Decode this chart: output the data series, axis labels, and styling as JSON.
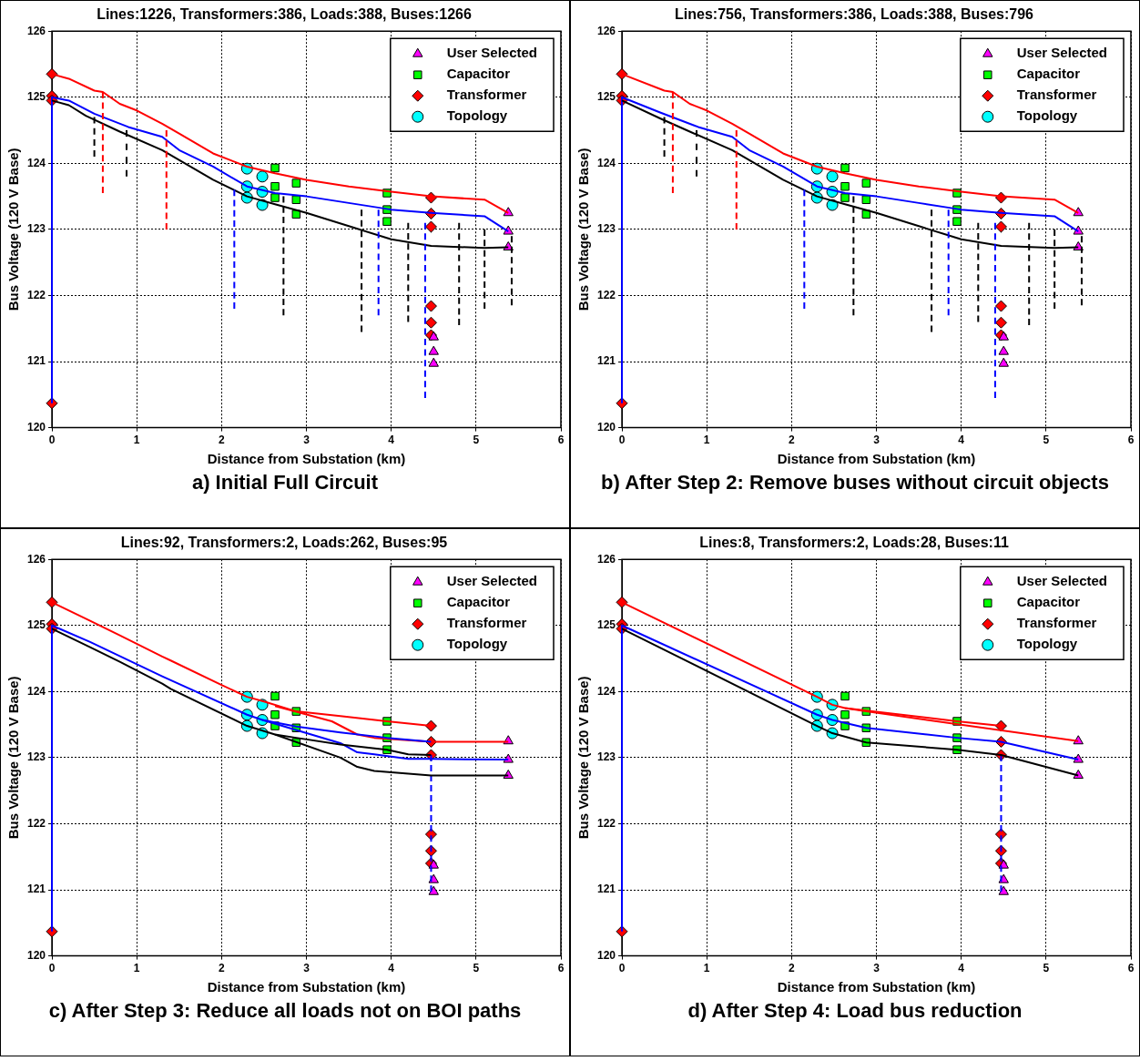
{
  "chart_data": [
    {
      "type": "line",
      "title": "Lines:1226, Transformers:386, Loads:388, Buses:1266",
      "xlabel": "Distance from Substation (km)",
      "ylabel": "Bus Voltage (120 V Base)",
      "annotations": [
        "a)  Initial Full Circuit"
      ],
      "xlim": [
        0,
        6
      ],
      "ylim": [
        120,
        126
      ],
      "xticks": [
        0,
        1,
        2,
        3,
        4,
        5,
        6
      ],
      "yticks": [
        120,
        121,
        122,
        123,
        124,
        125,
        126
      ],
      "grid": true,
      "legend": "top right",
      "series": [
        {
          "type": "line",
          "color": "#000000",
          "line_style": "dashed",
          "marker": "none",
          "x": [
            0.5,
            0.5
          ],
          "values": [
            124.7,
            124.1
          ]
        },
        {
          "type": "line",
          "color": "#ff0000",
          "line_style": "dashed",
          "marker": "none",
          "x": [
            0.6,
            0.6
          ],
          "values": [
            125.08,
            123.55
          ]
        },
        {
          "type": "line",
          "color": "#ff0000",
          "line_style": "dashed",
          "marker": "none",
          "x": [
            1.35,
            1.35
          ],
          "values": [
            124.5,
            123.0
          ]
        },
        {
          "type": "line",
          "color": "#000000",
          "line_style": "dashed",
          "marker": "none",
          "x": [
            0.88,
            0.88
          ],
          "values": [
            124.5,
            123.8
          ]
        },
        {
          "type": "line",
          "color": "#0000ff",
          "line_style": "dashed",
          "marker": "none",
          "x": [
            2.15,
            2.15
          ],
          "values": [
            123.6,
            121.8
          ]
        },
        {
          "type": "line",
          "color": "#000000",
          "line_style": "dashed",
          "marker": "none",
          "x": [
            2.73,
            2.73
          ],
          "values": [
            123.5,
            121.7
          ]
        },
        {
          "type": "line",
          "color": "#000000",
          "line_style": "dashed",
          "marker": "none",
          "x": [
            3.65,
            3.65
          ],
          "values": [
            123.3,
            121.45
          ]
        },
        {
          "type": "line",
          "color": "#0000ff",
          "line_style": "dashed",
          "marker": "none",
          "x": [
            3.85,
            3.85
          ],
          "values": [
            123.3,
            121.7
          ]
        },
        {
          "type": "line",
          "color": "#000000",
          "line_style": "dashed",
          "marker": "none",
          "x": [
            4.2,
            4.2
          ],
          "values": [
            123.1,
            121.6
          ]
        },
        {
          "type": "line",
          "color": "#0000ff",
          "line_style": "dashed",
          "marker": "none",
          "x": [
            4.4,
            4.4
          ],
          "values": [
            123.1,
            120.45
          ]
        },
        {
          "type": "line",
          "color": "#000000",
          "line_style": "dashed",
          "marker": "none",
          "x": [
            4.8,
            4.8
          ],
          "values": [
            123.1,
            121.55
          ]
        },
        {
          "type": "line",
          "color": "#000000",
          "line_style": "dashed",
          "marker": "none",
          "x": [
            5.1,
            5.1
          ],
          "values": [
            123.0,
            121.8
          ]
        },
        {
          "type": "line",
          "color": "#000000",
          "line_style": "dashed",
          "marker": "none",
          "x": [
            5.42,
            5.42
          ],
          "values": [
            122.9,
            121.85
          ]
        },
        {
          "type": "line",
          "color": "#000000",
          "line_style": "solid",
          "marker": "none",
          "x": [
            0,
            0.2,
            0.4,
            0.8,
            1.3,
            1.9,
            2.3,
            2.63,
            3.0,
            3.5,
            4.0,
            4.47,
            5.1,
            5.38
          ],
          "values": [
            124.95,
            124.88,
            124.72,
            124.48,
            124.2,
            123.75,
            123.5,
            123.38,
            123.25,
            123.05,
            122.85,
            122.75,
            122.72,
            122.73
          ]
        },
        {
          "type": "line",
          "color": "#0000ff",
          "line_style": "solid",
          "marker": "none",
          "x": [
            0,
            0,
            0.2,
            0.5,
            0.9,
            1.3,
            1.5,
            1.9,
            2.3,
            2.63,
            3.0,
            3.5,
            4.0,
            4.47,
            5.1,
            5.38
          ],
          "values": [
            120.37,
            125.0,
            124.95,
            124.75,
            124.55,
            124.4,
            124.2,
            123.95,
            123.65,
            123.55,
            123.5,
            123.4,
            123.3,
            123.25,
            123.2,
            122.97
          ]
        },
        {
          "type": "line",
          "color": "#ff0000",
          "line_style": "solid",
          "marker": "none",
          "x": [
            0,
            0.2,
            0.5,
            0.6,
            0.8,
            1.0,
            1.3,
            1.5,
            1.9,
            2.3,
            2.63,
            3.0,
            3.5,
            4.0,
            4.47,
            5.1,
            5.38
          ],
          "values": [
            125.35,
            125.28,
            125.1,
            125.08,
            124.9,
            124.8,
            124.6,
            124.45,
            124.15,
            123.95,
            123.85,
            123.75,
            123.65,
            123.57,
            123.5,
            123.45,
            123.25
          ]
        },
        {
          "name": "User Selected",
          "type": "scatter",
          "color": "#ff00ff",
          "marker": "triangle",
          "x": [
            5.38,
            5.38,
            5.38,
            4.5,
            4.5,
            4.5
          ],
          "values": [
            123.25,
            122.97,
            122.73,
            121.37,
            121.15,
            120.97
          ]
        },
        {
          "name": "Capacitor",
          "type": "scatter",
          "color": "#00ff00",
          "marker": "square",
          "x": [
            2.63,
            2.63,
            2.63,
            2.88,
            2.88,
            2.88,
            3.95,
            3.95,
            3.95
          ],
          "values": [
            123.93,
            123.65,
            123.48,
            123.7,
            123.45,
            123.23,
            123.55,
            123.3,
            123.12
          ]
        },
        {
          "name": "Transformer",
          "type": "scatter",
          "color": "#ff0000",
          "marker": "diamond",
          "x": [
            0,
            0,
            0,
            0,
            4.47,
            4.47,
            4.47,
            4.47,
            4.47,
            4.47
          ],
          "values": [
            125.35,
            125.02,
            124.95,
            120.37,
            123.48,
            123.24,
            123.04,
            121.84,
            121.59,
            121.4
          ]
        },
        {
          "name": "Topology",
          "type": "scatter",
          "color": "#00ffff",
          "marker": "circle",
          "x": [
            2.3,
            2.3,
            2.3,
            2.48,
            2.48,
            2.48
          ],
          "values": [
            123.92,
            123.65,
            123.48,
            123.8,
            123.57,
            123.37
          ]
        }
      ]
    },
    {
      "type": "line",
      "title": "Lines:756, Transformers:386, Loads:388, Buses:796",
      "xlabel": "Distance from Substation (km)",
      "ylabel": "Bus Voltage (120 V Base)",
      "annotations": [
        "b)  After Step 2: Remove buses without circuit objects"
      ],
      "xlim": [
        0,
        6
      ],
      "ylim": [
        120,
        126
      ],
      "xticks": [
        0,
        1,
        2,
        3,
        4,
        5,
        6
      ],
      "yticks": [
        120,
        121,
        122,
        123,
        124,
        125,
        126
      ],
      "grid": true,
      "legend": "top right",
      "series": [
        {
          "type": "line",
          "color": "#000000",
          "line_style": "dashed",
          "marker": "none",
          "x": [
            0.5,
            0.5
          ],
          "values": [
            124.7,
            124.1
          ]
        },
        {
          "type": "line",
          "color": "#ff0000",
          "line_style": "dashed",
          "marker": "none",
          "x": [
            0.6,
            0.6
          ],
          "values": [
            125.08,
            123.55
          ]
        },
        {
          "type": "line",
          "color": "#ff0000",
          "line_style": "dashed",
          "marker": "none",
          "x": [
            1.35,
            1.35
          ],
          "values": [
            124.5,
            123.0
          ]
        },
        {
          "type": "line",
          "color": "#000000",
          "line_style": "dashed",
          "marker": "none",
          "x": [
            0.88,
            0.88
          ],
          "values": [
            124.5,
            123.8
          ]
        },
        {
          "type": "line",
          "color": "#0000ff",
          "line_style": "dashed",
          "marker": "none",
          "x": [
            2.15,
            2.15
          ],
          "values": [
            123.6,
            121.8
          ]
        },
        {
          "type": "line",
          "color": "#000000",
          "line_style": "dashed",
          "marker": "none",
          "x": [
            2.73,
            2.73
          ],
          "values": [
            123.5,
            121.7
          ]
        },
        {
          "type": "line",
          "color": "#000000",
          "line_style": "dashed",
          "marker": "none",
          "x": [
            3.65,
            3.65
          ],
          "values": [
            123.3,
            121.45
          ]
        },
        {
          "type": "line",
          "color": "#0000ff",
          "line_style": "dashed",
          "marker": "none",
          "x": [
            3.85,
            3.85
          ],
          "values": [
            123.3,
            121.7
          ]
        },
        {
          "type": "line",
          "color": "#000000",
          "line_style": "dashed",
          "marker": "none",
          "x": [
            4.2,
            4.2
          ],
          "values": [
            123.1,
            121.6
          ]
        },
        {
          "type": "line",
          "color": "#0000ff",
          "line_style": "dashed",
          "marker": "none",
          "x": [
            4.4,
            4.4
          ],
          "values": [
            123.1,
            120.45
          ]
        },
        {
          "type": "line",
          "color": "#000000",
          "line_style": "dashed",
          "marker": "none",
          "x": [
            4.8,
            4.8
          ],
          "values": [
            123.1,
            121.55
          ]
        },
        {
          "type": "line",
          "color": "#000000",
          "line_style": "dashed",
          "marker": "none",
          "x": [
            5.1,
            5.1
          ],
          "values": [
            123.0,
            121.8
          ]
        },
        {
          "type": "line",
          "color": "#000000",
          "line_style": "dashed",
          "marker": "none",
          "x": [
            5.42,
            5.42
          ],
          "values": [
            122.9,
            121.85
          ]
        },
        {
          "type": "line",
          "color": "#000000",
          "line_style": "solid",
          "marker": "none",
          "x": [
            0,
            0.45,
            0.8,
            1.3,
            1.9,
            2.3,
            2.63,
            3.0,
            3.5,
            4.0,
            4.47,
            5.1,
            5.38
          ],
          "values": [
            124.95,
            124.68,
            124.48,
            124.2,
            123.75,
            123.5,
            123.38,
            123.25,
            123.05,
            122.85,
            122.75,
            122.72,
            122.73
          ]
        },
        {
          "type": "line",
          "color": "#0000ff",
          "line_style": "solid",
          "marker": "none",
          "x": [
            0,
            0,
            0.45,
            0.9,
            1.3,
            1.5,
            1.9,
            2.3,
            2.63,
            3.0,
            3.5,
            4.0,
            4.47,
            5.1,
            5.38
          ],
          "values": [
            120.37,
            125.0,
            124.77,
            124.55,
            124.4,
            124.2,
            123.95,
            123.65,
            123.55,
            123.5,
            123.4,
            123.3,
            123.25,
            123.2,
            122.97
          ]
        },
        {
          "type": "line",
          "color": "#ff0000",
          "line_style": "solid",
          "marker": "none",
          "x": [
            0,
            0.5,
            0.6,
            0.8,
            1.0,
            1.3,
            1.5,
            1.9,
            2.3,
            2.63,
            3.0,
            3.5,
            4.0,
            4.47,
            5.1,
            5.38
          ],
          "values": [
            125.35,
            125.1,
            125.08,
            124.9,
            124.8,
            124.6,
            124.45,
            124.15,
            123.95,
            123.85,
            123.75,
            123.65,
            123.57,
            123.5,
            123.45,
            123.25
          ]
        },
        {
          "name": "User Selected",
          "type": "scatter",
          "color": "#ff00ff",
          "marker": "triangle",
          "x": [
            5.38,
            5.38,
            5.38,
            4.5,
            4.5,
            4.5
          ],
          "values": [
            123.25,
            122.97,
            122.73,
            121.37,
            121.15,
            120.97
          ]
        },
        {
          "name": "Capacitor",
          "type": "scatter",
          "color": "#00ff00",
          "marker": "square",
          "x": [
            2.63,
            2.63,
            2.63,
            2.88,
            2.88,
            2.88,
            3.95,
            3.95,
            3.95
          ],
          "values": [
            123.93,
            123.65,
            123.48,
            123.7,
            123.45,
            123.23,
            123.55,
            123.3,
            123.12
          ]
        },
        {
          "name": "Transformer",
          "type": "scatter",
          "color": "#ff0000",
          "marker": "diamond",
          "x": [
            0,
            0,
            0,
            0,
            4.47,
            4.47,
            4.47,
            4.47,
            4.47,
            4.47
          ],
          "values": [
            125.35,
            125.02,
            124.95,
            120.37,
            123.48,
            123.24,
            123.04,
            121.84,
            121.59,
            121.4
          ]
        },
        {
          "name": "Topology",
          "type": "scatter",
          "color": "#00ffff",
          "marker": "circle",
          "x": [
            2.3,
            2.3,
            2.3,
            2.48,
            2.48,
            2.48
          ],
          "values": [
            123.92,
            123.65,
            123.48,
            123.8,
            123.57,
            123.37
          ]
        }
      ]
    },
    {
      "type": "line",
      "title": "Lines:92, Transformers:2, Loads:262, Buses:95",
      "xlabel": "Distance from Substation (km)",
      "ylabel": "Bus Voltage (120 V Base)",
      "annotations": [
        "c)  After Step 3: Reduce all loads not on BOI paths"
      ],
      "xlim": [
        0,
        6
      ],
      "ylim": [
        120,
        126
      ],
      "xticks": [
        0,
        1,
        2,
        3,
        4,
        5,
        6
      ],
      "yticks": [
        120,
        121,
        122,
        123,
        124,
        125,
        126
      ],
      "grid": true,
      "legend": "top right",
      "series": [
        {
          "type": "line",
          "color": "#000000",
          "line_style": "solid",
          "marker": "none",
          "x": [
            0,
            0.45,
            0.8,
            1.3,
            1.4,
            2.3,
            2.63,
            2.88,
            3.4,
            3.95,
            4.2,
            4.47
          ],
          "values": [
            124.95,
            124.67,
            124.45,
            124.12,
            124.04,
            123.48,
            123.35,
            123.3,
            123.2,
            123.12,
            123.05,
            123.04
          ]
        },
        {
          "type": "line",
          "color": "#000000",
          "line_style": "solid",
          "marker": "none",
          "x": [
            2.63,
            3.4,
            3.6,
            3.8,
            4.47,
            5.38
          ],
          "values": [
            123.35,
            123.0,
            122.86,
            122.8,
            122.73,
            122.73
          ]
        },
        {
          "type": "line",
          "color": "#0000ff",
          "line_style": "solid",
          "marker": "none",
          "x": [
            0,
            0,
            0.45,
            1.3,
            2.3,
            2.48,
            2.88,
            3.4,
            3.95,
            4.47
          ],
          "values": [
            120.37,
            125.0,
            124.75,
            124.23,
            123.65,
            123.57,
            123.47,
            123.38,
            123.3,
            123.24
          ]
        },
        {
          "type": "line",
          "color": "#0000ff",
          "line_style": "solid",
          "marker": "none",
          "x": [
            2.48,
            3.4,
            3.6,
            3.8,
            4.2,
            4.47,
            5.38
          ],
          "values": [
            123.57,
            123.22,
            123.08,
            123.05,
            122.98,
            122.98,
            122.97
          ]
        },
        {
          "type": "line",
          "color": "#ff0000",
          "line_style": "solid",
          "marker": "none",
          "x": [
            0,
            0.45,
            0.8,
            1.3,
            1.4,
            2.0,
            2.3,
            2.5,
            2.88,
            3.4,
            3.95,
            4.47
          ],
          "values": [
            125.35,
            125.07,
            124.85,
            124.53,
            124.47,
            124.1,
            123.92,
            123.85,
            123.7,
            123.63,
            123.55,
            123.48
          ]
        },
        {
          "type": "line",
          "color": "#ff0000",
          "line_style": "solid",
          "marker": "none",
          "x": [
            2.63,
            3.3,
            3.6,
            3.8,
            4.47,
            5.38
          ],
          "values": [
            123.78,
            123.55,
            123.35,
            123.3,
            123.24,
            123.24
          ]
        },
        {
          "type": "line",
          "color": "#0000ff",
          "line_style": "dashed",
          "marker": "none",
          "x": [
            4.47,
            4.47
          ],
          "values": [
            123.04,
            120.97
          ]
        },
        {
          "name": "User Selected",
          "type": "scatter",
          "color": "#ff00ff",
          "marker": "triangle",
          "x": [
            5.38,
            5.38,
            5.38,
            4.5,
            4.5,
            4.5
          ],
          "values": [
            123.25,
            122.97,
            122.73,
            121.37,
            121.15,
            120.97
          ]
        },
        {
          "name": "Capacitor",
          "type": "scatter",
          "color": "#00ff00",
          "marker": "square",
          "x": [
            2.63,
            2.63,
            2.63,
            2.88,
            2.88,
            2.88,
            3.95,
            3.95,
            3.95
          ],
          "values": [
            123.93,
            123.65,
            123.48,
            123.7,
            123.45,
            123.23,
            123.55,
            123.3,
            123.12
          ]
        },
        {
          "name": "Transformer",
          "type": "scatter",
          "color": "#ff0000",
          "marker": "diamond",
          "x": [
            0,
            0,
            0,
            0,
            4.47,
            4.47,
            4.47,
            4.47,
            4.47,
            4.47
          ],
          "values": [
            125.35,
            125.02,
            124.95,
            120.37,
            123.48,
            123.24,
            123.04,
            121.84,
            121.59,
            121.4
          ]
        },
        {
          "name": "Topology",
          "type": "scatter",
          "color": "#00ffff",
          "marker": "circle",
          "x": [
            2.3,
            2.3,
            2.3,
            2.48,
            2.48,
            2.48
          ],
          "values": [
            123.92,
            123.65,
            123.48,
            123.8,
            123.57,
            123.37
          ]
        }
      ]
    },
    {
      "type": "line",
      "title": "Lines:8, Transformers:2, Loads:28, Buses:11",
      "xlabel": "Distance from Substation (km)",
      "ylabel": "Bus Voltage (120 V Base)",
      "annotations": [
        "d)  After Step 4: Load bus reduction"
      ],
      "xlim": [
        0,
        6
      ],
      "ylim": [
        120,
        126
      ],
      "xticks": [
        0,
        1,
        2,
        3,
        4,
        5,
        6
      ],
      "yticks": [
        120,
        121,
        122,
        123,
        124,
        125,
        126
      ],
      "grid": true,
      "legend": "top right",
      "series": [
        {
          "type": "line",
          "color": "#000000",
          "line_style": "solid",
          "marker": "none",
          "x": [
            0,
            2.3,
            2.48,
            2.88,
            3.95,
            4.47,
            5.38
          ],
          "values": [
            124.95,
            123.48,
            123.37,
            123.23,
            123.12,
            123.04,
            122.73
          ]
        },
        {
          "type": "line",
          "color": "#0000ff",
          "line_style": "solid",
          "marker": "none",
          "x": [
            0,
            0,
            2.3,
            2.48,
            2.88,
            3.95,
            4.47,
            5.38
          ],
          "values": [
            120.37,
            125.0,
            123.65,
            123.57,
            123.45,
            123.3,
            123.24,
            122.97
          ]
        },
        {
          "type": "line",
          "color": "#ff0000",
          "line_style": "solid",
          "marker": "none",
          "x": [
            0,
            2.3,
            2.48,
            2.63,
            3.95,
            4.47
          ],
          "values": [
            125.35,
            123.92,
            123.8,
            123.75,
            123.55,
            123.48
          ]
        },
        {
          "type": "line",
          "color": "#ff0000",
          "line_style": "solid",
          "marker": "none",
          "x": [
            2.63,
            2.88,
            5.38
          ],
          "values": [
            123.75,
            123.7,
            123.25
          ]
        },
        {
          "type": "line",
          "color": "#0000ff",
          "line_style": "dashed",
          "marker": "none",
          "x": [
            4.47,
            4.47
          ],
          "values": [
            123.04,
            120.97
          ]
        },
        {
          "name": "User Selected",
          "type": "scatter",
          "color": "#ff00ff",
          "marker": "triangle",
          "x": [
            5.38,
            5.38,
            5.38,
            4.5,
            4.5,
            4.5
          ],
          "values": [
            123.25,
            122.97,
            122.73,
            121.37,
            121.15,
            120.97
          ]
        },
        {
          "name": "Capacitor",
          "type": "scatter",
          "color": "#00ff00",
          "marker": "square",
          "x": [
            2.63,
            2.63,
            2.63,
            2.88,
            2.88,
            2.88,
            3.95,
            3.95,
            3.95
          ],
          "values": [
            123.93,
            123.65,
            123.48,
            123.7,
            123.45,
            123.23,
            123.55,
            123.3,
            123.12
          ]
        },
        {
          "name": "Transformer",
          "type": "scatter",
          "color": "#ff0000",
          "marker": "diamond",
          "x": [
            0,
            0,
            0,
            0,
            4.47,
            4.47,
            4.47,
            4.47,
            4.47,
            4.47
          ],
          "values": [
            125.35,
            125.02,
            124.95,
            120.37,
            123.48,
            123.24,
            123.04,
            121.84,
            121.59,
            121.4
          ]
        },
        {
          "name": "Topology",
          "type": "scatter",
          "color": "#00ffff",
          "marker": "circle",
          "x": [
            2.3,
            2.3,
            2.3,
            2.48,
            2.48,
            2.48
          ],
          "values": [
            123.92,
            123.65,
            123.48,
            123.8,
            123.57,
            123.37
          ]
        }
      ]
    }
  ]
}
